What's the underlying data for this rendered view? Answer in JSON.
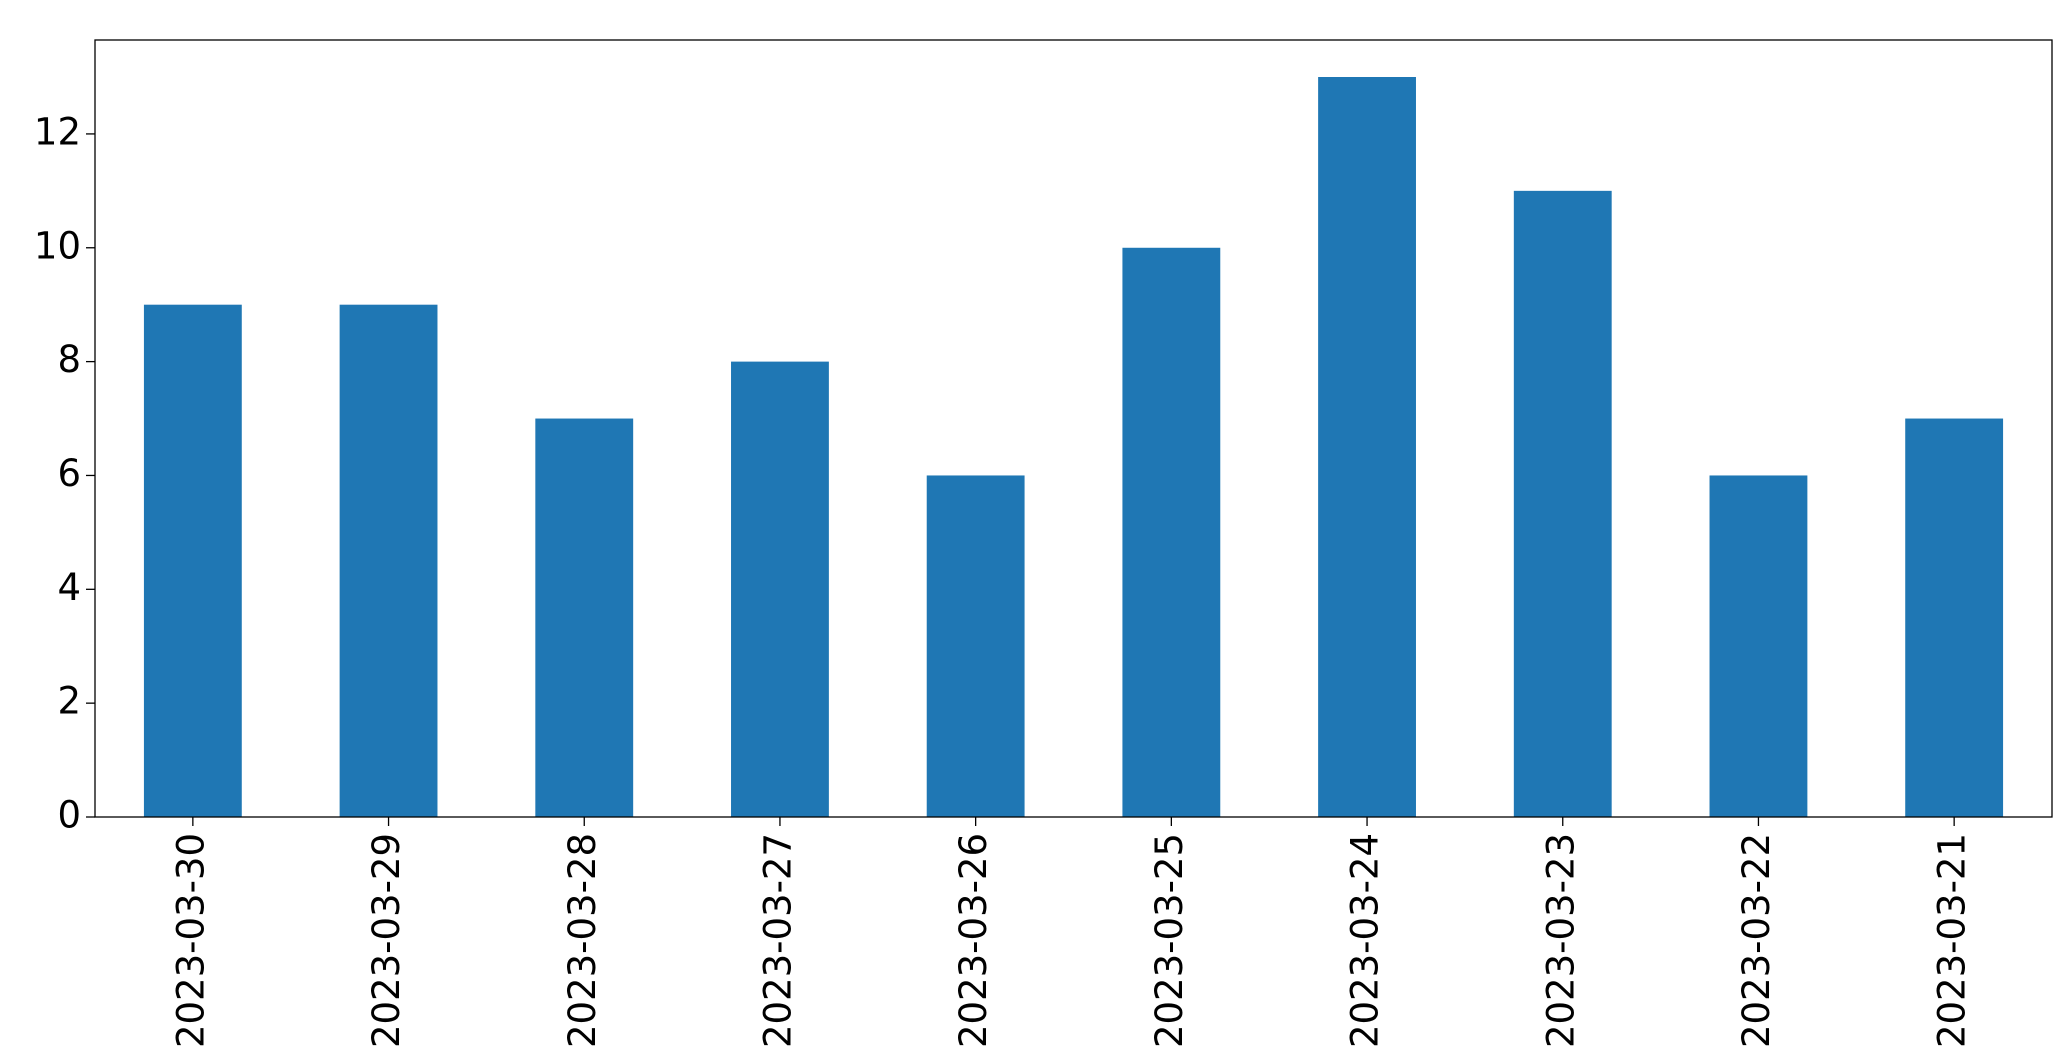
{
  "chart_data": {
    "type": "bar",
    "categories": [
      "2023-03-30",
      "2023-03-29",
      "2023-03-28",
      "2023-03-27",
      "2023-03-26",
      "2023-03-25",
      "2023-03-24",
      "2023-03-23",
      "2023-03-22",
      "2023-03-21"
    ],
    "values": [
      9,
      9,
      7,
      8,
      6,
      10,
      13,
      11,
      6,
      7
    ],
    "color": "#1f77b4",
    "ylim": [
      0,
      13.65
    ],
    "yticks": [
      0,
      2,
      4,
      6,
      8,
      10,
      12
    ],
    "grid": false
  }
}
